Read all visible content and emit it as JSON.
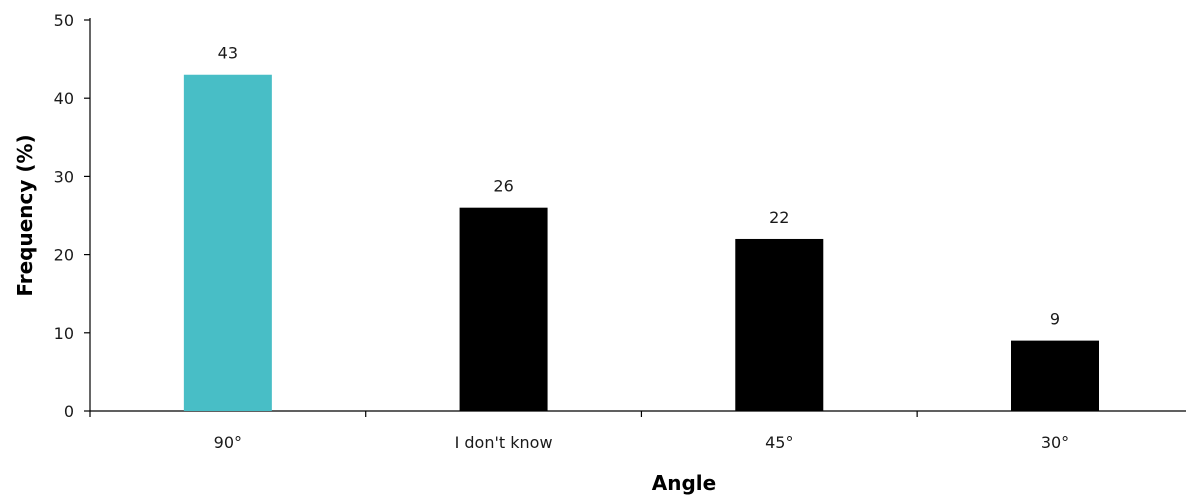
{
  "chart_data": {
    "type": "bar",
    "title": "",
    "xlabel": "Angle",
    "ylabel": "Frequency (%)",
    "categories": [
      "90°",
      "I don't know",
      "45°",
      "30°"
    ],
    "values": [
      43,
      26,
      22,
      9
    ],
    "data_labels": [
      "43",
      "26",
      "22",
      "9"
    ],
    "bar_colors": [
      "#48bec6",
      "#000000",
      "#000000",
      "#000000"
    ],
    "ylim": [
      0,
      50
    ],
    "yticks": [
      0,
      10,
      20,
      30,
      40,
      50
    ],
    "ytick_labels": [
      "0",
      "10",
      "20",
      "30",
      "40",
      "50"
    ],
    "grid": false,
    "legend": "none"
  }
}
